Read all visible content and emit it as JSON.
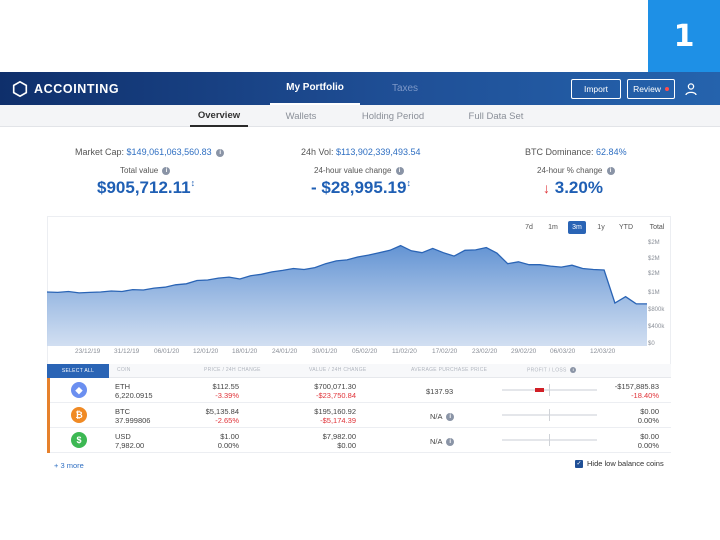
{
  "step_number": "1",
  "brand": {
    "name": "ACCOINTING"
  },
  "nav": {
    "tabs": [
      {
        "label": "My Portfolio",
        "active": true
      },
      {
        "label": "Taxes",
        "active": false
      }
    ],
    "import_label": "Import",
    "review_label": "Review"
  },
  "subnav": {
    "tabs": [
      {
        "label": "Overview",
        "active": true
      },
      {
        "label": "Wallets"
      },
      {
        "label": "Holding Period"
      },
      {
        "label": "Full Data Set"
      }
    ]
  },
  "stats": {
    "market_cap_label": "Market Cap:",
    "market_cap_value": "$149,061,063,560.83",
    "vol_label": "24h Vol:",
    "vol_value": "$113,902,339,493.54",
    "btc_dom_label": "BTC Dominance:",
    "btc_dom_value": "62.84%",
    "total_value_label": "Total value",
    "total_value": "$905,712.11",
    "change_label": "24-hour value change",
    "change_value": "- $28,995.19",
    "pct_label": "24-hour % change",
    "pct_value": "3.20%"
  },
  "chart": {
    "ranges": [
      {
        "label": "7d"
      },
      {
        "label": "1m"
      },
      {
        "label": "3m",
        "active": true
      },
      {
        "label": "1y"
      },
      {
        "label": "YTD"
      },
      {
        "label": "Total"
      }
    ]
  },
  "chart_data": {
    "type": "area",
    "title": "",
    "xlabel": "",
    "ylabel": "",
    "y_ticks": [
      "$2M",
      "$2M",
      "$2M",
      "$1M",
      "$800k",
      "$400k",
      "$0"
    ],
    "x_ticks": [
      "23/12/19",
      "31/12/19",
      "06/01/20",
      "12/01/20",
      "18/01/20",
      "24/01/20",
      "30/01/20",
      "05/02/20",
      "11/02/20",
      "17/02/20",
      "23/02/20",
      "29/02/20",
      "06/03/20",
      "12/03/20"
    ],
    "ylim": [
      0,
      2300000
    ],
    "series": [
      {
        "name": "Portfolio value",
        "values": [
          1130000,
          1120000,
          1140000,
          1110000,
          1120000,
          1130000,
          1150000,
          1140000,
          1180000,
          1170000,
          1210000,
          1230000,
          1280000,
          1300000,
          1370000,
          1380000,
          1420000,
          1440000,
          1400000,
          1470000,
          1500000,
          1550000,
          1580000,
          1620000,
          1600000,
          1640000,
          1720000,
          1780000,
          1800000,
          1860000,
          1900000,
          1950000,
          2000000,
          2100000,
          1990000,
          1950000,
          2040000,
          1950000,
          1880000,
          2000000,
          2010000,
          2060000,
          1940000,
          1720000,
          1760000,
          1700000,
          1700000,
          1670000,
          1650000,
          1690000,
          1620000,
          1600000,
          1590000,
          900000,
          1030000,
          880000,
          880000
        ]
      }
    ]
  },
  "table": {
    "select_all": "SELECT ALL",
    "headers": [
      "COIN",
      "PRICE / 24H CHANGE",
      "VALUE / 24H CHANGE",
      "AVERAGE PURCHASE PRICE",
      "PROFIT / LOSS"
    ],
    "rows": [
      {
        "coin": "ETH",
        "amount": "6,220.0915",
        "price": "$112.55",
        "price_change": "-3.39%",
        "value": "$700,071.30",
        "value_change": "-$23,750.84",
        "avg_price": "$137.93",
        "pl_value": "-$157,885.83",
        "pl_pct": "-18.40%",
        "pl_fraction": -0.184,
        "icon": "ethereum-icon",
        "icon_color": "#6b8ff0"
      },
      {
        "coin": "BTC",
        "amount": "37.999806",
        "price": "$5,135.84",
        "price_change": "-2.65%",
        "value": "$195,160.92",
        "value_change": "-$5,174.39",
        "avg_price": "N/A",
        "pl_value": "$0.00",
        "pl_pct": "0.00%",
        "pl_fraction": 0,
        "icon": "bitcoin-icon",
        "icon_color": "#f08a24"
      },
      {
        "coin": "USD",
        "amount": "7,982.00",
        "price": "$1.00",
        "price_change": "0.00%",
        "value": "$7,982.00",
        "value_change": "$0.00",
        "avg_price": "N/A",
        "pl_value": "$0.00",
        "pl_pct": "0.00%",
        "pl_fraction": 0,
        "icon": "dollar-icon",
        "icon_color": "#3cb853"
      }
    ],
    "more_label": "+ 3 more",
    "hide_low_label": "Hide low balance coins"
  }
}
